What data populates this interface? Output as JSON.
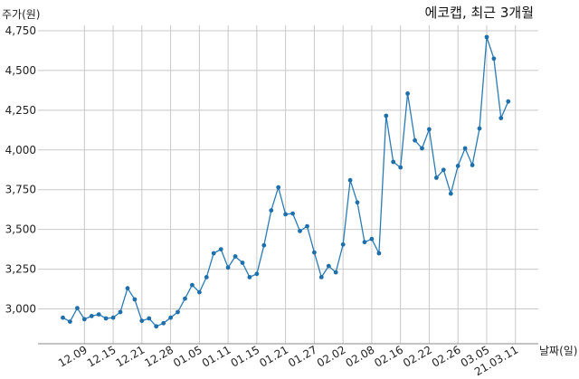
{
  "chart_data": {
    "type": "line",
    "title": "에코캡, 최근 3개월",
    "ylabel": "주가(원)",
    "xlabel": "날짜(일)",
    "ylim": [
      2830,
      4800
    ],
    "yticks": [
      3000,
      3250,
      3500,
      3750,
      4000,
      4250,
      4500,
      4750
    ],
    "ytick_labels": [
      "3,000",
      "3,250",
      "3,500",
      "3,750",
      "4,000",
      "4,250",
      "4,500",
      "4,750"
    ],
    "xtick_labels": [
      "12.09",
      "12.15",
      "12.21",
      "12.28",
      "01.05",
      "01.11",
      "01.15",
      "01.21",
      "01.27",
      "02.02",
      "02.08",
      "02.16",
      "02.22",
      "02.26",
      "03.05",
      "21.03.11"
    ],
    "xtick_index": [
      3,
      7,
      11,
      15,
      19,
      23,
      27,
      31,
      35,
      39,
      43,
      47,
      51,
      55,
      59,
      63
    ],
    "grid": true,
    "legend": "none",
    "colors": {
      "line": "#2b7bb4",
      "point": "#1f6fab",
      "grid": "#c8c8c8"
    },
    "series": [
      {
        "values": [
          2945,
          2920,
          3005,
          2935,
          2955,
          2965,
          2940,
          2945,
          2980,
          3130,
          3060,
          2925,
          2940,
          2890,
          2910,
          2945,
          2980,
          3065,
          3150,
          3105,
          3200,
          3350,
          3375,
          3260,
          3330,
          3290,
          3200,
          3220,
          3400,
          3620,
          3765,
          3595,
          3600,
          3490,
          3520,
          3355,
          3200,
          3270,
          3230,
          3405,
          3810,
          3670,
          3420,
          3440,
          3350,
          4215,
          3925,
          3890,
          4355,
          4060,
          4010,
          4130,
          3825,
          3875,
          3725,
          3900,
          4010,
          3905,
          4135,
          4710,
          4575,
          4200,
          4305
        ]
      }
    ]
  }
}
